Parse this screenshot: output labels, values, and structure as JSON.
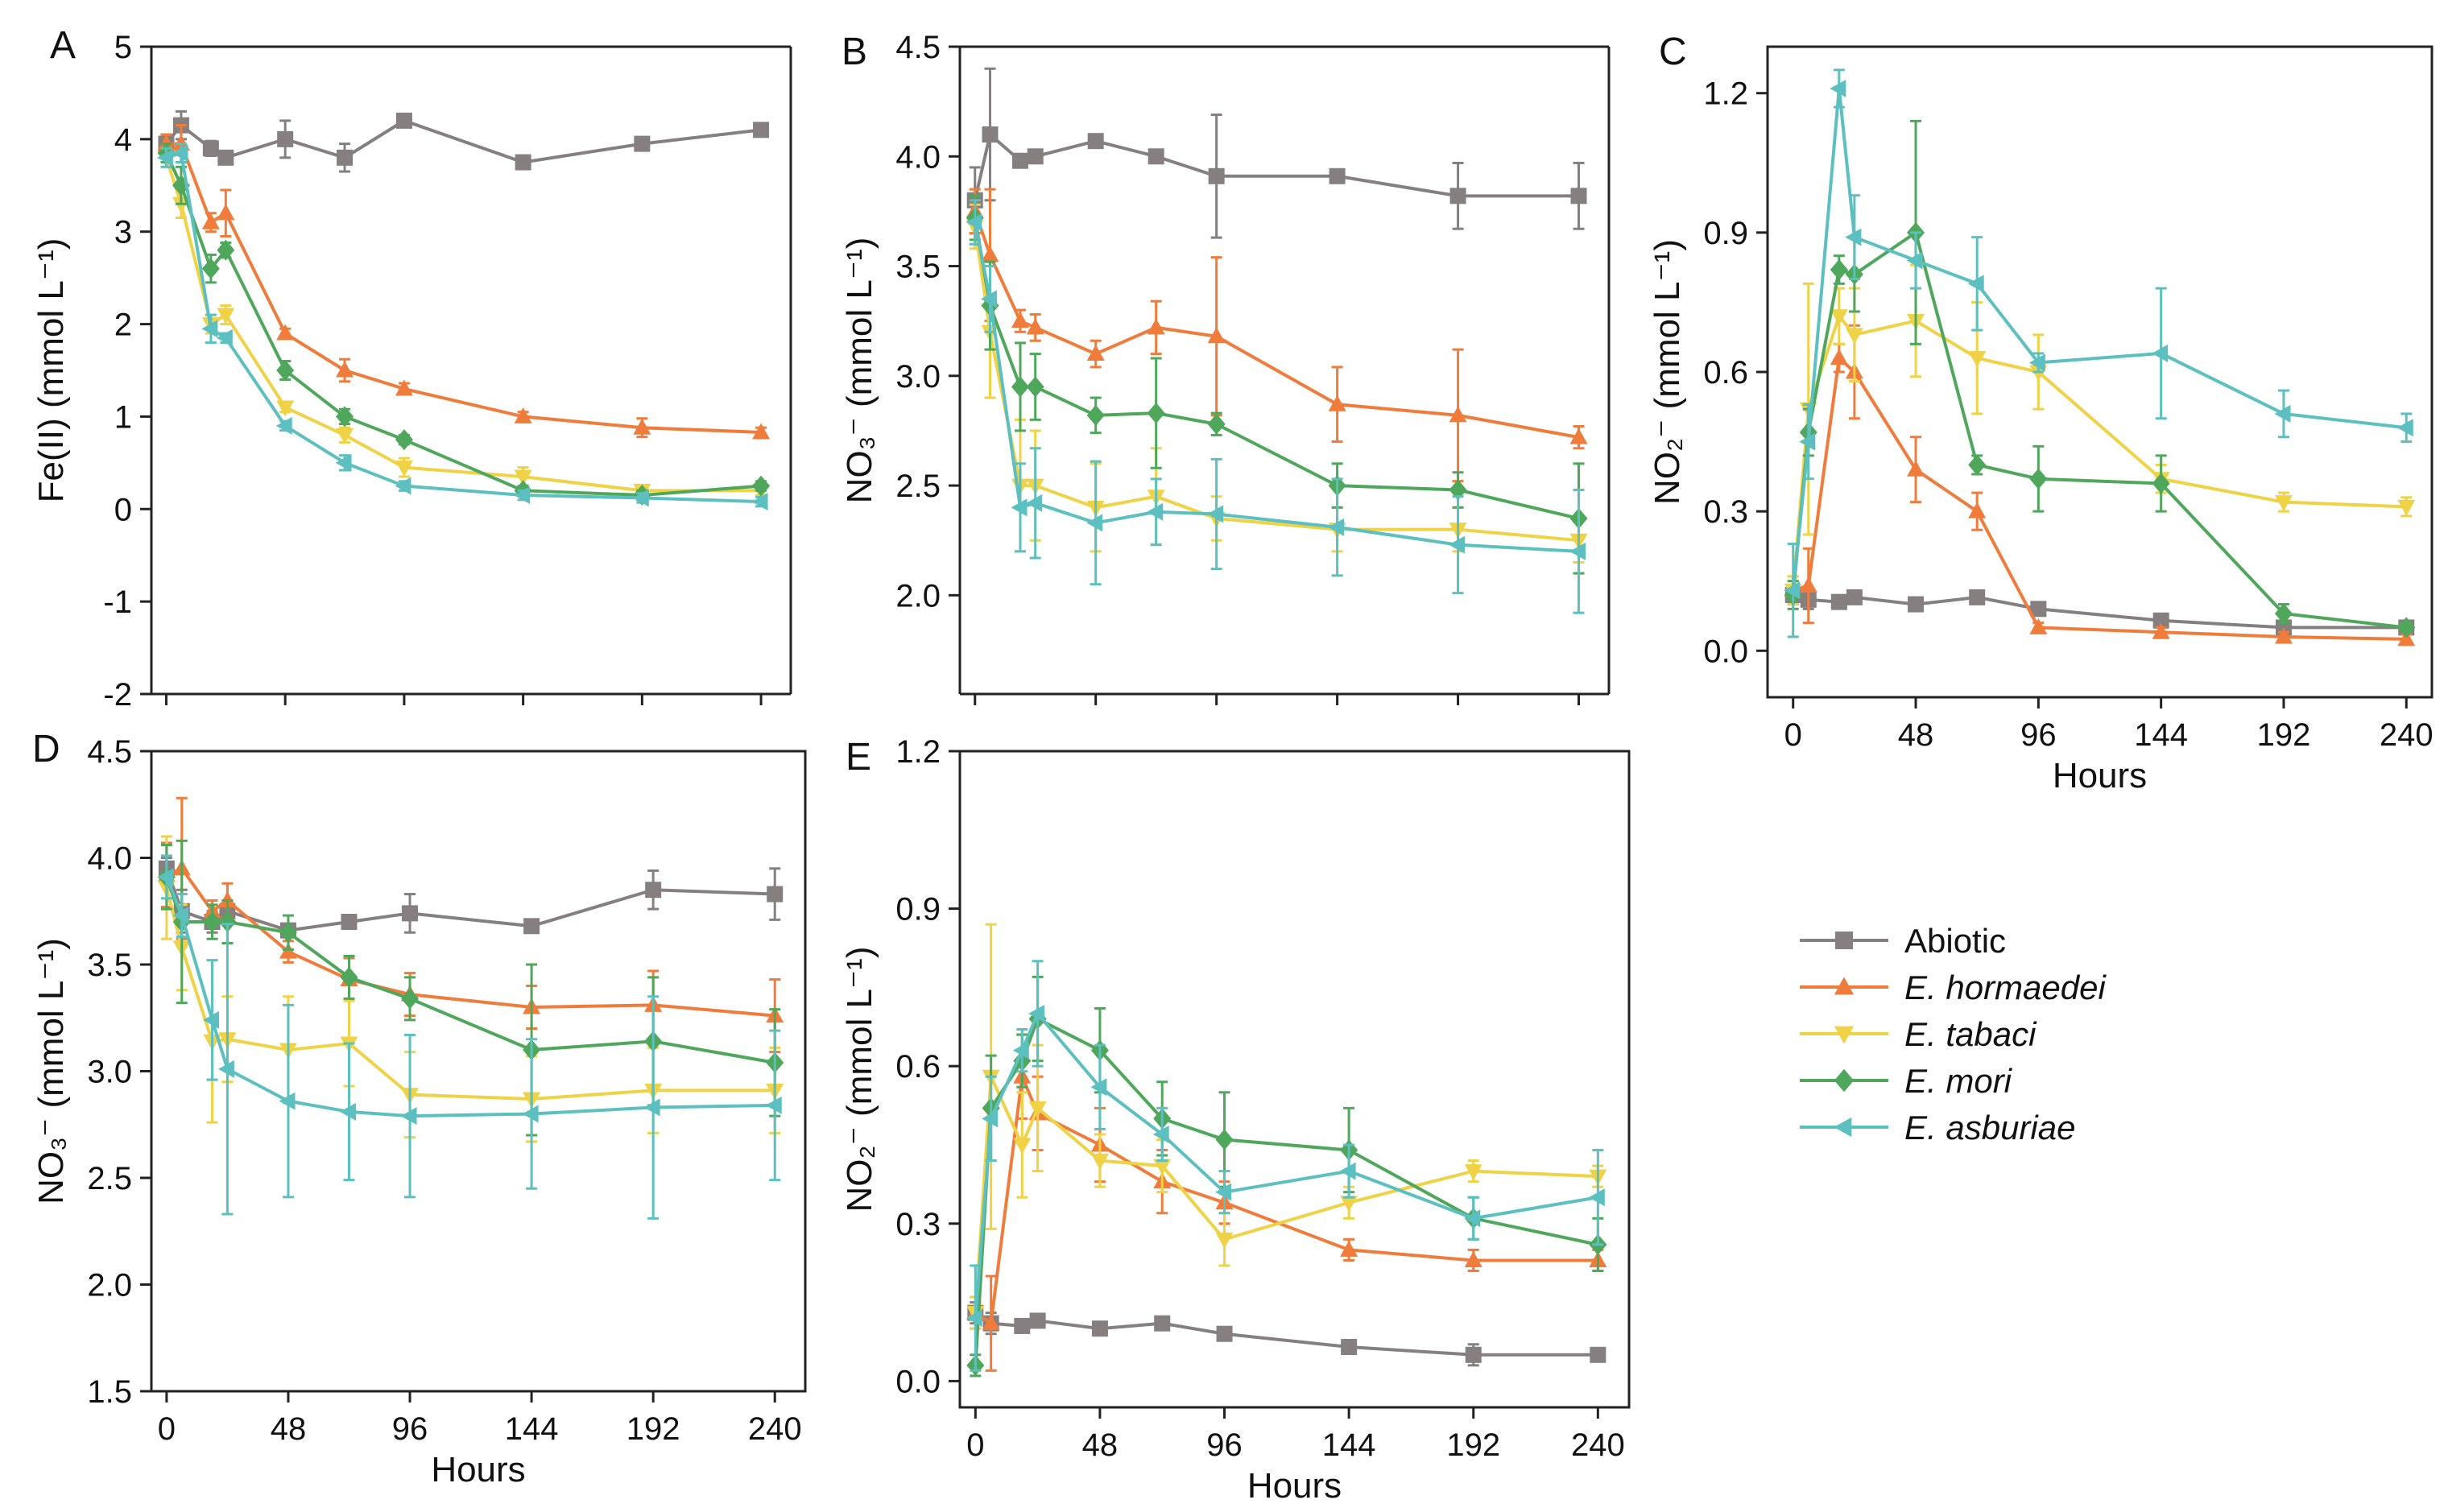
{
  "legend": [
    {
      "name": "Abiotic",
      "italic": false
    },
    {
      "name": "E. hormaedei",
      "italic": true
    },
    {
      "name": "E. tabaci",
      "italic": true
    },
    {
      "name": "E. mori",
      "italic": true
    },
    {
      "name": "E. asburiae",
      "italic": true
    }
  ],
  "series_style": [
    {
      "color": "#857f7f",
      "marker": "square"
    },
    {
      "color": "#f07c3c",
      "marker": "triangle-up"
    },
    {
      "color": "#efd245",
      "marker": "triangle-down"
    },
    {
      "color": "#4ea75a",
      "marker": "diamond"
    },
    {
      "color": "#5cbfc0",
      "marker": "triangle-left"
    }
  ],
  "chart_data": [
    {
      "panel": "A",
      "type": "line",
      "ylabel": "Fe(II) (mmol L⁻¹)",
      "xlabel": "",
      "xlim": [
        -6,
        252
      ],
      "ylim": [
        -2,
        5
      ],
      "xticks": [
        0,
        48,
        96,
        144,
        192,
        240
      ],
      "yticks": [
        -2,
        -1,
        0,
        1,
        2,
        3,
        4,
        5
      ],
      "xtick_labels_shown": false,
      "series": [
        {
          "name": "Abiotic",
          "x": [
            0,
            6,
            18,
            24,
            48,
            72,
            96,
            144,
            192,
            240
          ],
          "y": [
            3.95,
            4.15,
            3.9,
            3.8,
            4.0,
            3.8,
            4.2,
            3.75,
            3.95,
            4.1
          ],
          "err": [
            0.1,
            0.15,
            0.08,
            0.05,
            0.2,
            0.15,
            0.05,
            0.05,
            0.05,
            0.05
          ]
        },
        {
          "name": "E. hormaedei",
          "x": [
            0,
            6,
            18,
            24,
            48,
            72,
            96,
            144,
            192,
            240
          ],
          "y": [
            3.95,
            3.95,
            3.1,
            3.2,
            1.9,
            1.5,
            1.3,
            1.0,
            0.88,
            0.83
          ],
          "err": [
            0.1,
            0.2,
            0.1,
            0.25,
            0.05,
            0.12,
            0.06,
            0.05,
            0.1,
            0.05
          ]
        },
        {
          "name": "E. tabaci",
          "x": [
            0,
            6,
            18,
            24,
            48,
            72,
            96,
            144,
            192,
            240
          ],
          "y": [
            3.8,
            3.3,
            2.0,
            2.1,
            1.1,
            0.8,
            0.45,
            0.35,
            0.2,
            0.2
          ],
          "err": [
            0.1,
            0.15,
            0.1,
            0.1,
            0.05,
            0.08,
            0.1,
            0.1,
            0.05,
            0.05
          ]
        },
        {
          "name": "E. mori",
          "x": [
            0,
            6,
            18,
            24,
            48,
            72,
            96,
            144,
            192,
            240
          ],
          "y": [
            3.85,
            3.5,
            2.6,
            2.8,
            1.5,
            1.0,
            0.75,
            0.2,
            0.15,
            0.25
          ],
          "err": [
            0.1,
            0.2,
            0.15,
            0.08,
            0.1,
            0.08,
            0.05,
            0.05,
            0.05,
            0.05
          ]
        },
        {
          "name": "E. asburiae",
          "x": [
            0,
            6,
            18,
            24,
            48,
            72,
            96,
            144,
            192,
            240
          ],
          "y": [
            3.8,
            3.85,
            1.95,
            1.85,
            0.9,
            0.5,
            0.25,
            0.15,
            0.12,
            0.08
          ],
          "err": [
            0.1,
            0.1,
            0.15,
            0.05,
            0.05,
            0.08,
            0.05,
            0.05,
            0.05,
            0.05
          ]
        }
      ]
    },
    {
      "panel": "B",
      "type": "line",
      "ylabel": "NO₃⁻ (mmol L⁻¹)",
      "xlabel": "",
      "xlim": [
        -6,
        252
      ],
      "ylim": [
        1.55,
        4.5
      ],
      "xticks": [
        0,
        48,
        96,
        144,
        192,
        240
      ],
      "yticks": [
        2.0,
        2.5,
        3.0,
        3.5,
        4.0,
        4.5
      ],
      "ytick_labels": [
        "2.0",
        "2.5",
        "3.0",
        "3.5",
        "4.0",
        "4.5"
      ],
      "xtick_labels_shown": false,
      "series": [
        {
          "name": "Abiotic",
          "x": [
            0,
            6,
            18,
            24,
            48,
            72,
            96,
            144,
            192,
            240
          ],
          "y": [
            3.8,
            4.1,
            3.98,
            4.0,
            4.07,
            4.0,
            3.91,
            3.91,
            3.82,
            3.82
          ],
          "err": [
            0.15,
            0.3,
            0.03,
            0.03,
            0.02,
            0.03,
            0.28,
            0.02,
            0.15,
            0.15
          ]
        },
        {
          "name": "E. hormaedei",
          "x": [
            0,
            6,
            18,
            24,
            48,
            72,
            96,
            144,
            192,
            240
          ],
          "y": [
            3.75,
            3.55,
            3.25,
            3.22,
            3.1,
            3.22,
            3.18,
            2.87,
            2.82,
            2.72
          ],
          "err": [
            0.1,
            0.3,
            0.05,
            0.06,
            0.06,
            0.12,
            0.36,
            0.17,
            0.3,
            0.05
          ]
        },
        {
          "name": "E. tabaci",
          "x": [
            0,
            6,
            18,
            24,
            48,
            72,
            96,
            144,
            192,
            240
          ],
          "y": [
            3.68,
            3.2,
            2.5,
            2.5,
            2.4,
            2.45,
            2.35,
            2.3,
            2.3,
            2.25
          ],
          "err": [
            0.1,
            0.3,
            0.3,
            0.25,
            0.2,
            0.22,
            0.1,
            0.1,
            0.1,
            0.1
          ]
        },
        {
          "name": "E. mori",
          "x": [
            0,
            6,
            18,
            24,
            48,
            72,
            96,
            144,
            192,
            240
          ],
          "y": [
            3.72,
            3.32,
            2.95,
            2.95,
            2.82,
            2.83,
            2.78,
            2.5,
            2.48,
            2.35
          ],
          "err": [
            0.1,
            0.2,
            0.2,
            0.15,
            0.08,
            0.25,
            0.05,
            0.1,
            0.08,
            0.25
          ]
        },
        {
          "name": "E. asburiae",
          "x": [
            0,
            6,
            18,
            24,
            48,
            72,
            96,
            144,
            192,
            240
          ],
          "y": [
            3.7,
            3.35,
            2.4,
            2.42,
            2.33,
            2.38,
            2.37,
            2.31,
            2.23,
            2.2
          ],
          "err": [
            0.1,
            0.15,
            0.2,
            0.25,
            0.28,
            0.15,
            0.25,
            0.22,
            0.22,
            0.28
          ]
        }
      ]
    },
    {
      "panel": "C",
      "type": "line",
      "ylabel": "NO₂⁻ (mmol L⁻¹)",
      "xlabel": "Hours",
      "xlim": [
        -10,
        250
      ],
      "ylim": [
        -0.1,
        1.3
      ],
      "xticks": [
        0,
        48,
        96,
        144,
        192,
        240
      ],
      "yticks": [
        0.0,
        0.3,
        0.6,
        0.9,
        1.2
      ],
      "ytick_labels": [
        "0.0",
        "0.3",
        "0.6",
        "0.9",
        "1.2"
      ],
      "xtick_labels_shown": true,
      "series": [
        {
          "name": "Abiotic",
          "x": [
            0,
            6,
            18,
            24,
            48,
            72,
            96,
            144,
            192,
            240
          ],
          "y": [
            0.12,
            0.11,
            0.105,
            0.115,
            0.1,
            0.115,
            0.09,
            0.065,
            0.05,
            0.05
          ],
          "err": [
            0.02,
            0.02,
            0.01,
            0.01,
            0.01,
            0.01,
            0.01,
            0.01,
            0.01,
            0.01
          ]
        },
        {
          "name": "E. hormaedei",
          "x": [
            0,
            6,
            18,
            24,
            48,
            72,
            96,
            144,
            192,
            240
          ],
          "y": [
            0.13,
            0.14,
            0.63,
            0.6,
            0.39,
            0.3,
            0.05,
            0.04,
            0.03,
            0.025
          ],
          "err": [
            0.03,
            0.08,
            0.03,
            0.1,
            0.07,
            0.04,
            0.01,
            0.01,
            0.01,
            0.01
          ]
        },
        {
          "name": "E. tabaci",
          "x": [
            0,
            6,
            18,
            24,
            48,
            72,
            96,
            144,
            192,
            240
          ],
          "y": [
            0.13,
            0.52,
            0.72,
            0.68,
            0.71,
            0.63,
            0.6,
            0.37,
            0.32,
            0.31
          ],
          "err": [
            0.03,
            0.27,
            0.06,
            0.1,
            0.12,
            0.12,
            0.08,
            0.03,
            0.02,
            0.02
          ]
        },
        {
          "name": "E. mori",
          "x": [
            0,
            6,
            18,
            24,
            48,
            72,
            96,
            144,
            192,
            240
          ],
          "y": [
            0.12,
            0.47,
            0.82,
            0.81,
            0.9,
            0.4,
            0.37,
            0.36,
            0.08,
            0.05
          ],
          "err": [
            0.03,
            0.05,
            0.03,
            0.08,
            0.24,
            0.02,
            0.07,
            0.06,
            0.02,
            0.01
          ]
        },
        {
          "name": "E. asburiae",
          "x": [
            0,
            6,
            18,
            24,
            48,
            72,
            96,
            144,
            192,
            240
          ],
          "y": [
            0.13,
            0.45,
            1.21,
            0.89,
            0.84,
            0.79,
            0.62,
            0.64,
            0.51,
            0.48
          ],
          "err": [
            0.1,
            0.08,
            0.04,
            0.09,
            0.06,
            0.1,
            0.02,
            0.14,
            0.05,
            0.03
          ]
        }
      ]
    },
    {
      "panel": "D",
      "type": "line",
      "ylabel": "NO₃⁻ (mmol L⁻¹)",
      "xlabel": "Hours",
      "xlim": [
        -6,
        252
      ],
      "ylim": [
        1.5,
        4.5
      ],
      "xticks": [
        0,
        48,
        96,
        144,
        192,
        240
      ],
      "yticks": [
        1.5,
        2.0,
        2.5,
        3.0,
        3.5,
        4.0,
        4.5
      ],
      "ytick_labels": [
        "1.5",
        "2.0",
        "2.5",
        "3.0",
        "3.5",
        "4.0",
        "4.5"
      ],
      "xtick_labels_shown": true,
      "series": [
        {
          "name": "Abiotic",
          "x": [
            0,
            6,
            18,
            24,
            48,
            72,
            96,
            144,
            192,
            240
          ],
          "y": [
            3.95,
            3.75,
            3.7,
            3.75,
            3.66,
            3.7,
            3.74,
            3.68,
            3.85,
            3.83
          ],
          "err": [
            0.05,
            0.1,
            0.05,
            0.05,
            0.03,
            0.03,
            0.09,
            0.03,
            0.09,
            0.12
          ]
        },
        {
          "name": "E. hormaedei",
          "x": [
            0,
            6,
            18,
            24,
            48,
            72,
            96,
            144,
            192,
            240
          ],
          "y": [
            3.92,
            3.95,
            3.75,
            3.8,
            3.56,
            3.43,
            3.36,
            3.3,
            3.31,
            3.26
          ],
          "err": [
            0.15,
            0.33,
            0.05,
            0.08,
            0.05,
            0.1,
            0.1,
            0.1,
            0.16,
            0.17
          ]
        },
        {
          "name": "E. tabaci",
          "x": [
            0,
            6,
            18,
            24,
            48,
            72,
            96,
            144,
            192,
            240
          ],
          "y": [
            3.86,
            3.58,
            3.14,
            3.15,
            3.1,
            3.13,
            2.89,
            2.87,
            2.91,
            2.91
          ],
          "err": [
            0.24,
            0.2,
            0.38,
            0.2,
            0.25,
            0.2,
            0.2,
            0.2,
            0.2,
            0.2
          ]
        },
        {
          "name": "E. mori",
          "x": [
            0,
            6,
            18,
            24,
            48,
            72,
            96,
            144,
            192,
            240
          ],
          "y": [
            3.91,
            3.7,
            3.7,
            3.7,
            3.65,
            3.44,
            3.34,
            3.1,
            3.14,
            3.04
          ],
          "err": [
            0.15,
            0.38,
            0.08,
            0.1,
            0.08,
            0.1,
            0.1,
            0.4,
            0.3,
            0.25
          ]
        },
        {
          "name": "E. asburiae",
          "x": [
            0,
            6,
            18,
            24,
            48,
            72,
            96,
            144,
            192,
            240
          ],
          "y": [
            3.91,
            3.73,
            3.24,
            3.01,
            2.86,
            2.81,
            2.79,
            2.8,
            2.83,
            2.84
          ],
          "err": [
            0.1,
            0.1,
            0.28,
            0.68,
            0.45,
            0.32,
            0.38,
            0.35,
            0.52,
            0.35
          ]
        }
      ]
    },
    {
      "panel": "E",
      "type": "line",
      "ylabel": "NO₂⁻ (mmol L⁻¹)",
      "xlabel": "Hours",
      "xlim": [
        -6,
        252
      ],
      "ylim": [
        -0.05,
        1.2
      ],
      "xticks": [
        0,
        48,
        96,
        144,
        192,
        240
      ],
      "yticks": [
        0.0,
        0.3,
        0.6,
        0.9,
        1.2
      ],
      "ytick_labels": [
        "0.0",
        "0.3",
        "0.6",
        "0.9",
        "1.2"
      ],
      "xtick_labels_shown": true,
      "series": [
        {
          "name": "Abiotic",
          "x": [
            0,
            6,
            18,
            24,
            48,
            72,
            96,
            144,
            192,
            240
          ],
          "y": [
            0.13,
            0.11,
            0.105,
            0.115,
            0.1,
            0.11,
            0.09,
            0.065,
            0.05,
            0.05
          ],
          "err": [
            0.02,
            0.02,
            0.01,
            0.01,
            0.01,
            0.01,
            0.01,
            0.01,
            0.02,
            0.01
          ]
        },
        {
          "name": "E. hormaedei",
          "x": [
            0,
            6,
            18,
            24,
            48,
            72,
            96,
            144,
            192,
            240
          ],
          "y": [
            0.13,
            0.11,
            0.58,
            0.51,
            0.45,
            0.38,
            0.34,
            0.25,
            0.23,
            0.23
          ],
          "err": [
            0.03,
            0.09,
            0.08,
            0.07,
            0.07,
            0.06,
            0.04,
            0.02,
            0.02,
            0.02
          ]
        },
        {
          "name": "E. tabaci",
          "x": [
            0,
            6,
            18,
            24,
            48,
            72,
            96,
            144,
            192,
            240
          ],
          "y": [
            0.13,
            0.58,
            0.45,
            0.52,
            0.42,
            0.41,
            0.27,
            0.34,
            0.4,
            0.39
          ],
          "err": [
            0.03,
            0.29,
            0.1,
            0.12,
            0.05,
            0.05,
            0.05,
            0.03,
            0.02,
            0.02
          ]
        },
        {
          "name": "E. mori",
          "x": [
            0,
            6,
            18,
            24,
            48,
            72,
            96,
            144,
            192,
            240
          ],
          "y": [
            0.03,
            0.52,
            0.61,
            0.69,
            0.63,
            0.5,
            0.46,
            0.44,
            0.31,
            0.26
          ],
          "err": [
            0.02,
            0.1,
            0.05,
            0.08,
            0.08,
            0.07,
            0.09,
            0.08,
            0.04,
            0.05
          ]
        },
        {
          "name": "E. asburiae",
          "x": [
            0,
            6,
            18,
            24,
            48,
            72,
            96,
            144,
            192,
            240
          ],
          "y": [
            0.12,
            0.5,
            0.63,
            0.7,
            0.56,
            0.47,
            0.36,
            0.4,
            0.31,
            0.35
          ],
          "err": [
            0.1,
            0.08,
            0.04,
            0.1,
            0.08,
            0.05,
            0.04,
            0.05,
            0.04,
            0.09
          ]
        }
      ]
    }
  ]
}
